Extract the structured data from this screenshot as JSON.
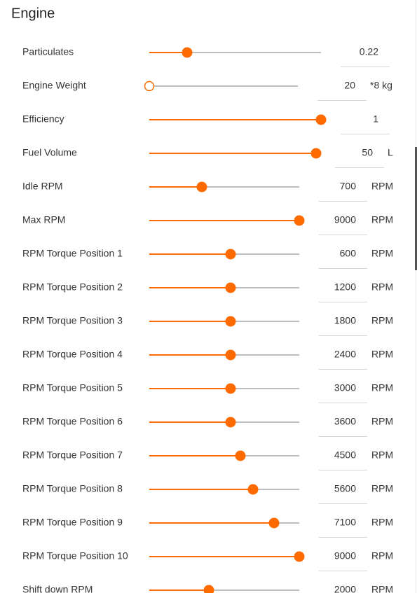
{
  "panel": {
    "title": "Engine",
    "rows": [
      {
        "label": "Particulates",
        "value": 0.22
      },
      {
        "label": "Engine Weight",
        "value": 20,
        "unit": "*8 kg"
      },
      {
        "label": "Efficiency",
        "value": 1
      },
      {
        "label": "Fuel Volume",
        "value": 50,
        "unit": "L"
      },
      {
        "label": "Idle RPM",
        "value": 700,
        "unit": "RPM"
      },
      {
        "label": "Max RPM",
        "value": 9000,
        "unit": "RPM"
      },
      {
        "label": "RPM Torque Position 1",
        "value": 600,
        "unit": "RPM"
      },
      {
        "label": "RPM Torque Position 2",
        "value": 1200,
        "unit": "RPM"
      },
      {
        "label": "RPM Torque Position 3",
        "value": 1800,
        "unit": "RPM"
      },
      {
        "label": "RPM Torque Position 4",
        "value": 2400,
        "unit": "RPM"
      },
      {
        "label": "RPM Torque Position 5",
        "value": 3000,
        "unit": "RPM"
      },
      {
        "label": "RPM Torque Position 6",
        "value": 3600,
        "unit": "RPM"
      },
      {
        "label": "RPM Torque Position 7",
        "value": 4500,
        "unit": "RPM"
      },
      {
        "label": "RPM Torque Position 8",
        "value": 5600,
        "unit": "RPM"
      },
      {
        "label": "RPM Torque Position 9",
        "value": 7100,
        "unit": "RPM"
      },
      {
        "label": "RPM Torque Position 10",
        "value": 9000,
        "unit": "RPM"
      },
      {
        "label": "Shift down RPM",
        "value": 2000,
        "unit": "RPM"
      }
    ]
  }
}
